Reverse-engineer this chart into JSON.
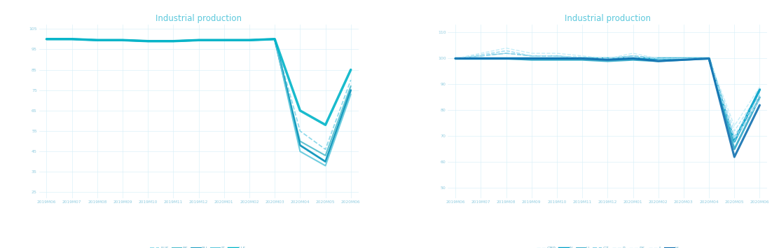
{
  "title": "Industrial production",
  "chart1": {
    "x_labels": [
      "2019M06",
      "2019M07",
      "2019M08",
      "2019M09",
      "2019M10",
      "2019M11",
      "2019M12",
      "2020M01",
      "2020M02",
      "2020M03",
      "2020M04",
      "2020M05",
      "2020M06"
    ],
    "y_ticks": [
      25,
      35,
      45,
      55,
      65,
      75,
      85,
      95,
      105
    ],
    "ylim": [
      22,
      107
    ],
    "series": [
      {
        "label": "AUS",
        "style": "--",
        "color": "#7dd4e8",
        "lw": 1.2,
        "data": [
          100,
          100,
          99.5,
          99.5,
          99,
          99,
          99.5,
          99.5,
          99.5,
          100,
          55,
          46,
          80
        ]
      },
      {
        "label": "ES",
        "style": "-",
        "color": "#50bccc",
        "lw": 1.5,
        "data": [
          100,
          100,
          99.5,
          99.5,
          99,
          99,
          99.5,
          99.5,
          99.5,
          100,
          50,
          43,
          77
        ]
      },
      {
        "label": "EU",
        "style": "-",
        "color": "#0090b8",
        "lw": 2.0,
        "data": [
          100,
          100,
          99.5,
          99.5,
          99,
          99,
          99.5,
          99.5,
          99.5,
          100,
          48,
          40,
          75
        ]
      },
      {
        "label": "IT",
        "style": "-",
        "color": "#60c8dc",
        "lw": 1.5,
        "data": [
          100,
          100,
          99.5,
          99.5,
          99,
          99,
          99.5,
          99.5,
          99.5,
          100,
          45,
          38,
          73
        ]
      },
      {
        "label": "U.S.",
        "style": "-",
        "color": "#00b4c8",
        "lw": 2.5,
        "data": [
          100,
          100,
          99.5,
          99.5,
          99,
          99,
          99.5,
          99.5,
          99.5,
          100,
          65,
          58,
          85
        ]
      }
    ]
  },
  "chart2": {
    "x_labels": [
      "2019M06",
      "2019M07",
      "2019M08",
      "2019M09",
      "2019M10",
      "2019M11",
      "2019M12",
      "2020M01",
      "2020M02",
      "2020M03",
      "2020M04",
      "2020M05",
      "2020M06"
    ],
    "y_ticks": [
      50,
      60,
      70,
      80,
      90,
      100,
      110
    ],
    "ylim": [
      46,
      113
    ],
    "series": [
      {
        "label": "GBP",
        "style": "--",
        "color": "#b0e4f4",
        "lw": 1.0,
        "data": [
          100,
          101.5,
          103,
          101,
          101,
          100.5,
          100,
          101,
          100,
          100,
          100,
          72,
          87
        ]
      },
      {
        "label": "N",
        "style": "-",
        "color": "#00a0c8",
        "lw": 2.5,
        "data": [
          100,
          100,
          100,
          100,
          100,
          100,
          100,
          100,
          100,
          100,
          100,
          68,
          88
        ]
      },
      {
        "label": "U",
        "style": "-",
        "color": "#30a8c8",
        "lw": 2.0,
        "data": [
          100,
          100,
          100,
          99.5,
          99.5,
          99.5,
          99,
          99.5,
          99,
          99.5,
          100,
          65,
          85
        ]
      },
      {
        "label": "CZ",
        "style": "--",
        "color": "#70c8e0",
        "lw": 1.2,
        "data": [
          100,
          101,
          102,
          101,
          101,
          100,
          100,
          101,
          100,
          100,
          100,
          68,
          85
        ]
      },
      {
        "label": "R",
        "style": "--",
        "color": "#90d4ec",
        "lw": 1.0,
        "data": [
          100,
          101,
          102,
          101,
          101,
          100,
          100,
          101,
          100,
          100,
          100,
          70,
          86
        ]
      },
      {
        "label": "RS",
        "style": "--",
        "color": "#c0ecf8",
        "lw": 1.0,
        "data": [
          100,
          102,
          104,
          102,
          102,
          101,
          100,
          102,
          100,
          100,
          100,
          74,
          89
        ]
      },
      {
        "label": "A",
        "style": "--",
        "color": "#a8e0f4",
        "lw": 1.0,
        "data": [
          100,
          101,
          103,
          101,
          101,
          100,
          100,
          100.5,
          100,
          100,
          100,
          69,
          84
        ]
      },
      {
        "label": "H",
        "style": "-",
        "color": "#1070b0",
        "lw": 2.2,
        "data": [
          100,
          100,
          100,
          100,
          100,
          100,
          99.5,
          100,
          99,
          99.5,
          100,
          62,
          82
        ]
      }
    ]
  },
  "colors": {
    "title": "#5bc8dc",
    "tick_label": "#90cce0",
    "grid": "#d8f0f8",
    "bg": "#ffffff",
    "legend_text": "#70b8d0"
  }
}
